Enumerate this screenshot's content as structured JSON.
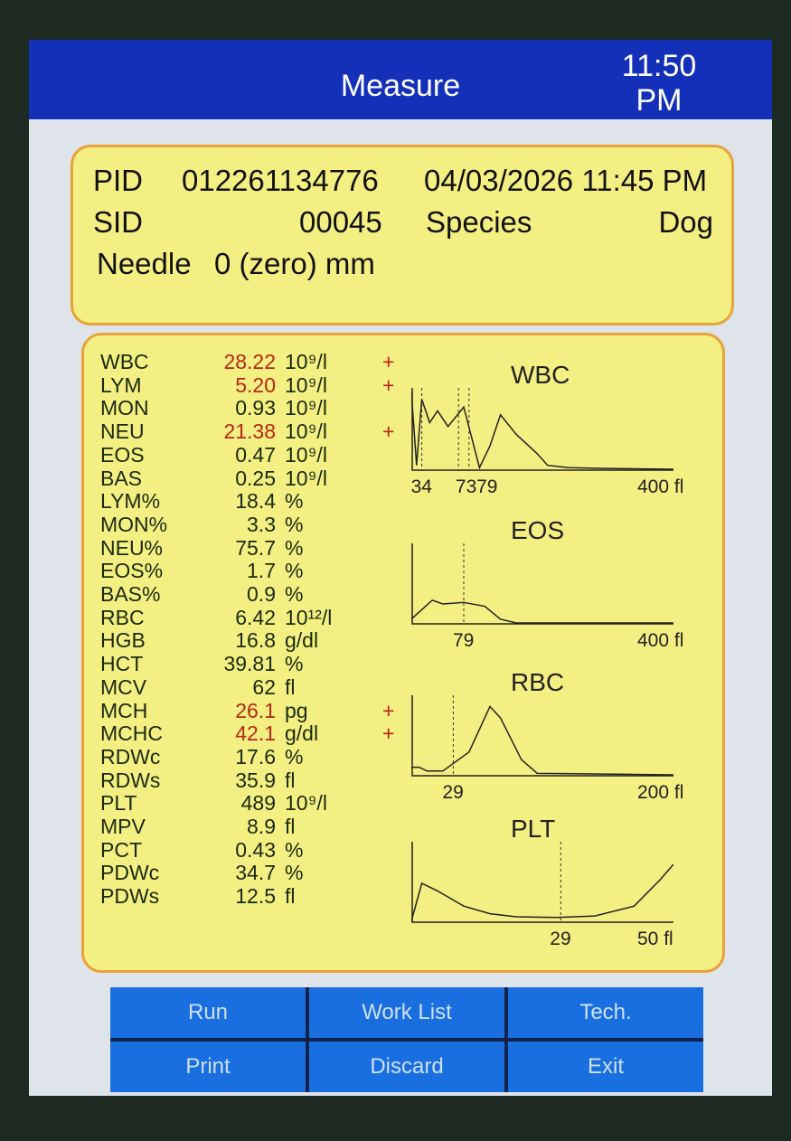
{
  "header": {
    "title": "Measure",
    "time": "11:50",
    "ampm": "PM"
  },
  "info": {
    "pid_label": "PID",
    "pid": "012261134776",
    "datetime": "04/03/2026 11:45 PM",
    "sid_label": "SID",
    "sid": "00045",
    "species_label": "Species",
    "species": "Dog",
    "needle_label": "Needle",
    "needle": "0 (zero) mm"
  },
  "results": [
    {
      "name": "WBC",
      "value": "28.22",
      "unit": "10⁹/l",
      "flag": "+"
    },
    {
      "name": "LYM",
      "value": "5.20",
      "unit": "10⁹/l",
      "flag": "+"
    },
    {
      "name": "MON",
      "value": "0.93",
      "unit": "10⁹/l",
      "flag": ""
    },
    {
      "name": "NEU",
      "value": "21.38",
      "unit": "10⁹/l",
      "flag": "+"
    },
    {
      "name": "EOS",
      "value": "0.47",
      "unit": "10⁹/l",
      "flag": ""
    },
    {
      "name": "BAS",
      "value": "0.25",
      "unit": "10⁹/l",
      "flag": ""
    },
    {
      "name": "LYM%",
      "value": "18.4",
      "unit": "%",
      "flag": ""
    },
    {
      "name": "MON%",
      "value": "3.3",
      "unit": "%",
      "flag": ""
    },
    {
      "name": "NEU%",
      "value": "75.7",
      "unit": "%",
      "flag": ""
    },
    {
      "name": "EOS%",
      "value": "1.7",
      "unit": "%",
      "flag": ""
    },
    {
      "name": "BAS%",
      "value": "0.9",
      "unit": "%",
      "flag": ""
    },
    {
      "name": "RBC",
      "value": "6.42",
      "unit": "10¹²/l",
      "flag": ""
    },
    {
      "name": "HGB",
      "value": "16.8",
      "unit": "g/dl",
      "flag": ""
    },
    {
      "name": "HCT",
      "value": "39.81",
      "unit": "%",
      "flag": ""
    },
    {
      "name": "MCV",
      "value": "62",
      "unit": "fl",
      "flag": ""
    },
    {
      "name": "MCH",
      "value": "26.1",
      "unit": "pg",
      "flag": "+"
    },
    {
      "name": "MCHC",
      "value": "42.1",
      "unit": "g/dl",
      "flag": "+"
    },
    {
      "name": "RDWc",
      "value": "17.6",
      "unit": "%",
      "flag": ""
    },
    {
      "name": "RDWs",
      "value": "35.9",
      "unit": "fl",
      "flag": ""
    },
    {
      "name": "PLT",
      "value": "489",
      "unit": "10⁹/l",
      "flag": ""
    },
    {
      "name": "MPV",
      "value": "8.9",
      "unit": "fl",
      "flag": ""
    },
    {
      "name": "PCT",
      "value": "0.43",
      "unit": "%",
      "flag": ""
    },
    {
      "name": "PDWc",
      "value": "34.7",
      "unit": "%",
      "flag": ""
    },
    {
      "name": "PDWs",
      "value": "12.5",
      "unit": "fl",
      "flag": ""
    }
  ],
  "histograms": [
    {
      "title": "WBC",
      "markers": [
        "34",
        "73",
        "79"
      ],
      "max": "400 fl"
    },
    {
      "title": "EOS",
      "markers": [
        "79"
      ],
      "max": "400 fl"
    },
    {
      "title": "RBC",
      "markers": [
        "29"
      ],
      "max": "200 fl"
    },
    {
      "title": "PLT",
      "markers": [
        "29"
      ],
      "max": "50 fl"
    }
  ],
  "buttons": [
    "Run",
    "Work List",
    "Tech.",
    "Print",
    "Discard",
    "Exit"
  ],
  "colors": {
    "header": "#1530b8",
    "panel": "#f3ef82",
    "border": "#e8a23a",
    "flag": "#c0201a",
    "button": "#1a6fe0"
  }
}
